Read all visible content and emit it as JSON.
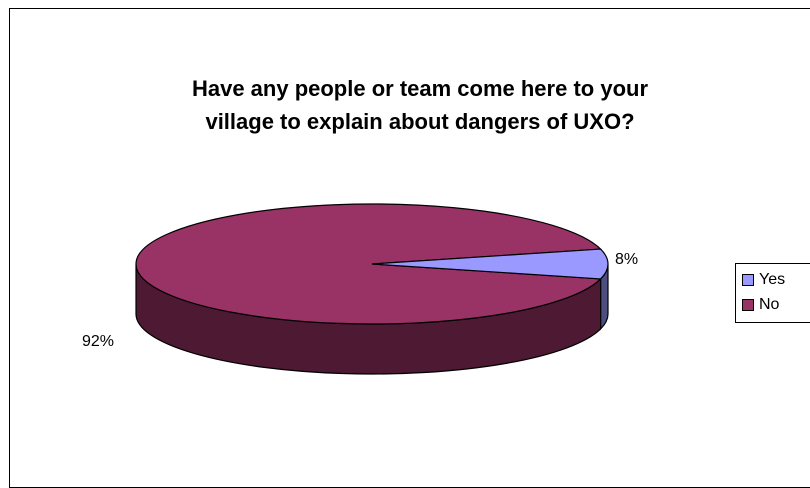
{
  "chart_data": {
    "type": "pie",
    "title_lines": [
      "Have any people or team come here to your",
      "village to explain about dangers of UXO?"
    ],
    "categories": [
      "Yes",
      "No"
    ],
    "values": [
      8,
      92
    ],
    "data_labels": [
      "8%",
      "92%"
    ],
    "colors": [
      "#9999ff",
      "#993366"
    ],
    "side_colors": [
      "#4d4d80",
      "#4d1933"
    ],
    "legend_position": "right",
    "three_d": true
  }
}
